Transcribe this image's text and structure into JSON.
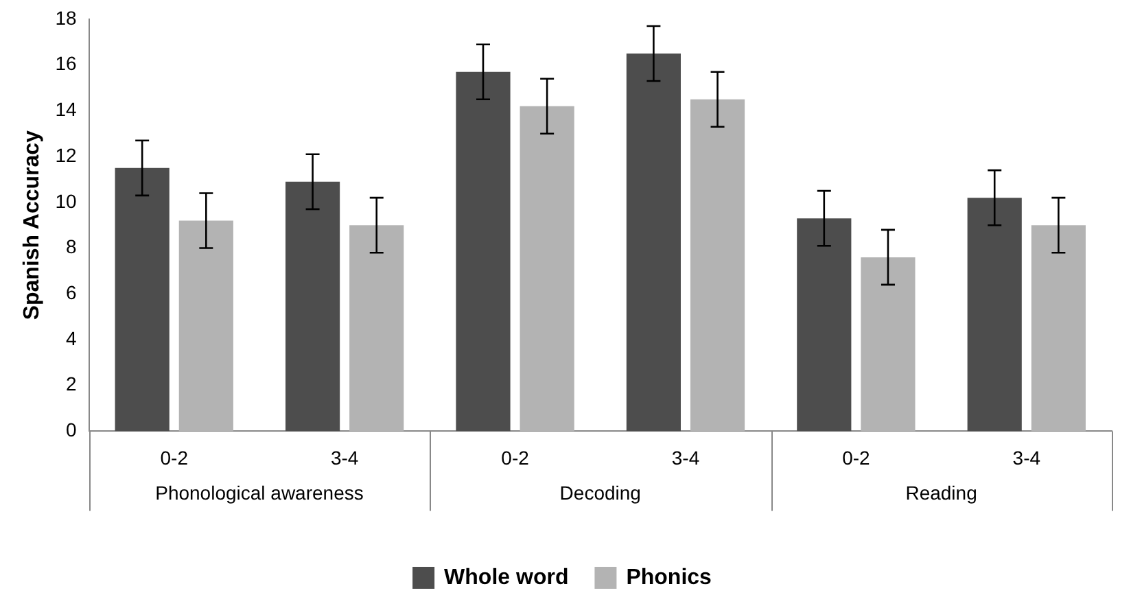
{
  "chart_data": {
    "type": "bar",
    "ylabel": "Spanish Accuracy",
    "categories": [
      "0-2",
      "3-4",
      "0-2",
      "3-4",
      "0-2",
      "3-4"
    ],
    "annotations": [
      "Phonological awareness",
      "Decoding",
      "Reading"
    ],
    "series": [
      {
        "name": "Whole word",
        "color": "#4d4d4d",
        "values": [
          11.5,
          10.9,
          15.7,
          16.5,
          9.3,
          10.2
        ],
        "errors": [
          1.2,
          1.2,
          1.2,
          1.2,
          1.2,
          1.2
        ]
      },
      {
        "name": "Phonics",
        "color": "#b3b3b3",
        "values": [
          9.2,
          9.0,
          14.2,
          14.5,
          7.6,
          9.0
        ],
        "errors": [
          1.2,
          1.2,
          1.2,
          1.2,
          1.2,
          1.2
        ]
      }
    ],
    "ylim": [
      0,
      18
    ],
    "yticks": [
      0,
      2,
      4,
      6,
      8,
      10,
      12,
      14,
      16,
      18
    ],
    "grid": false,
    "legend": "bottom"
  }
}
